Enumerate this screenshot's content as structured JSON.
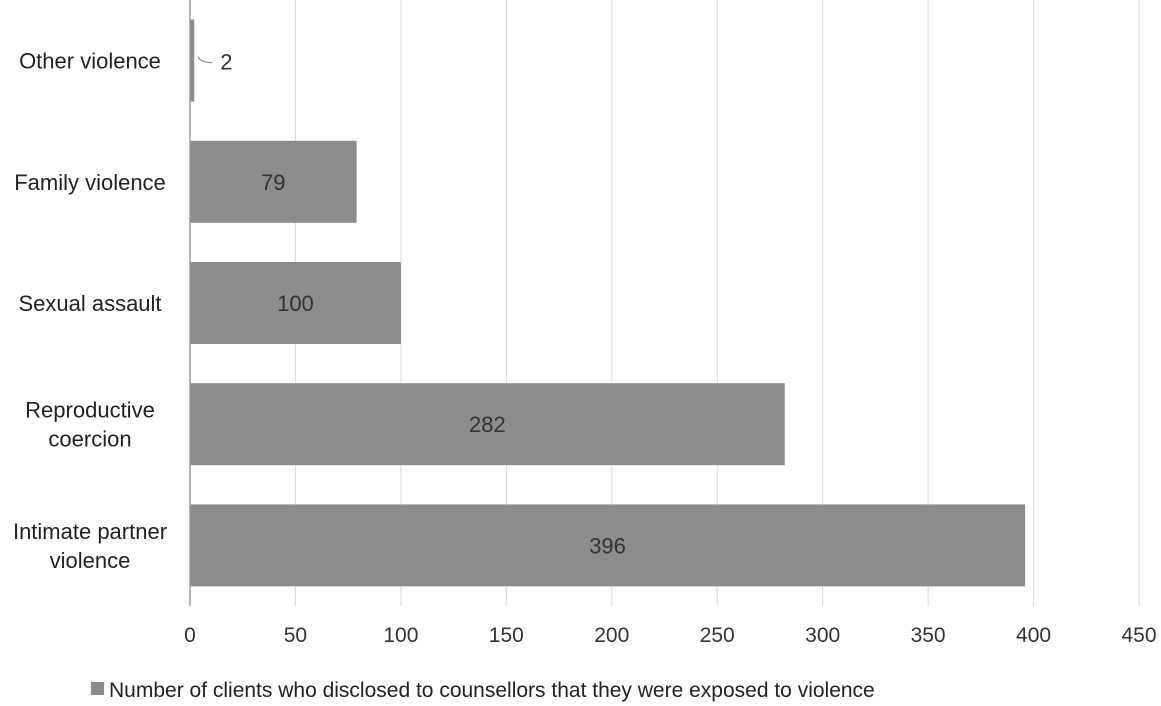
{
  "chart_data": {
    "type": "bar",
    "orientation": "horizontal",
    "categories": [
      [
        "Other violence"
      ],
      [
        "Family violence"
      ],
      [
        "Sexual assault"
      ],
      [
        "Reproductive",
        "coercion"
      ],
      [
        "Intimate partner",
        "violence"
      ]
    ],
    "series": [
      {
        "name": "Number of clients who disclosed to counsellors that they were exposed to violence",
        "values": [
          2,
          79,
          100,
          282,
          396
        ],
        "color": "#8c8c8c"
      }
    ],
    "data_labels": [
      "2",
      "79",
      "100",
      "282",
      "396"
    ],
    "xlim": [
      0,
      450
    ],
    "xticks": [
      0,
      50,
      100,
      150,
      200,
      250,
      300,
      350,
      400,
      450
    ],
    "grid": true,
    "legend_position": "bottom"
  }
}
